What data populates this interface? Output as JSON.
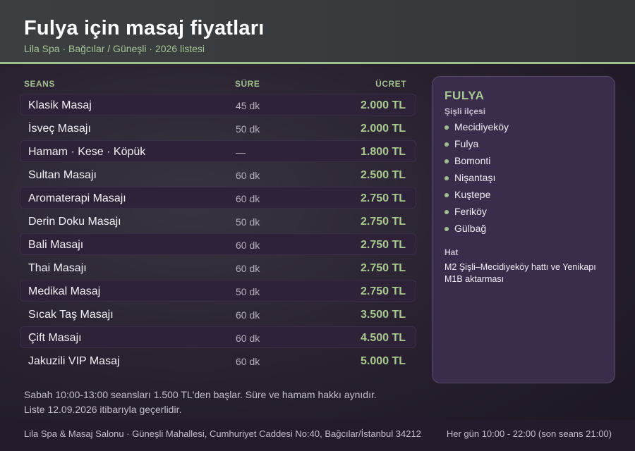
{
  "header": {
    "title": "Fulya için masaj fiyatları",
    "subtitle": "Lila Spa · Bağcılar / Güneşli · 2026 listesi"
  },
  "table": {
    "columns": {
      "service": "SEANS",
      "duration": "SÜRE",
      "price": "ÜCRET"
    },
    "rows": [
      {
        "name": "Klasik Masaj",
        "duration": "45 dk",
        "price": "2.000 TL"
      },
      {
        "name": "İsveç Masajı",
        "duration": "50 dk",
        "price": "2.000 TL"
      },
      {
        "name": "Hamam · Kese · Köpük",
        "duration": "—",
        "price": "1.800 TL"
      },
      {
        "name": "Sultan Masajı",
        "duration": "60 dk",
        "price": "2.500 TL"
      },
      {
        "name": "Aromaterapi Masajı",
        "duration": "60 dk",
        "price": "2.750 TL"
      },
      {
        "name": "Derin Doku Masajı",
        "duration": "50 dk",
        "price": "2.750 TL"
      },
      {
        "name": "Bali Masajı",
        "duration": "60 dk",
        "price": "2.750 TL"
      },
      {
        "name": "Thai Masajı",
        "duration": "60 dk",
        "price": "2.750 TL"
      },
      {
        "name": "Medikal Masaj",
        "duration": "50 dk",
        "price": "2.750 TL"
      },
      {
        "name": "Sıcak Taş Masajı",
        "duration": "60 dk",
        "price": "3.500 TL"
      },
      {
        "name": "Çift Masajı",
        "duration": "60 dk",
        "price": "4.500 TL"
      },
      {
        "name": "Jakuzili VIP Masaj",
        "duration": "60 dk",
        "price": "5.000 TL"
      }
    ]
  },
  "panel": {
    "title": "FULYA",
    "district": "Şişli ilçesi",
    "neighborhoods": [
      "Mecidiyeköy",
      "Fulya",
      "Bomonti",
      "Nişantaşı",
      "Kuştepe",
      "Feriköy",
      "Gülbağ"
    ],
    "line_label": "Hat",
    "line_text": "M2 Şişli–Mecidiyeköy hattı ve Yenikapı M1B aktarması"
  },
  "notes": {
    "line1": "Sabah 10:00-13:00 seansları 1.500 TL'den başlar. Süre ve hamam hakkı aynıdır.",
    "line2": "Liste 12.09.2026 itibarıyla geçerlidir."
  },
  "footer": {
    "address": "Lila Spa & Masaj Salonu · Güneşli Mahallesi, Cumhuriyet Caddesi No:40, Bağcılar/İstanbul 34212",
    "hours": "Her gün 10:00 - 22:00 (son seans 21:00)"
  },
  "colors": {
    "accent_green": "#a8c98f",
    "header_bg": "#3c3f41",
    "panel_bg": "#3a2d4b",
    "row_highlight": "#2d2238"
  }
}
